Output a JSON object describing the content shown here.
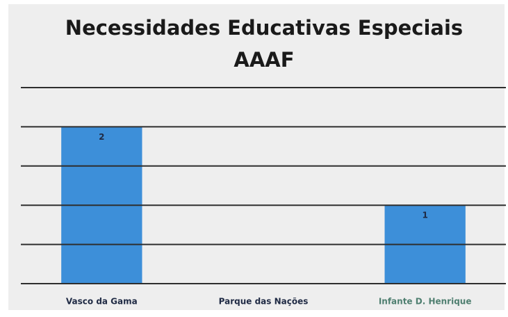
{
  "chart_data": {
    "type": "bar",
    "title": [
      "Necessidades Educativas Especiais",
      "AAAF"
    ],
    "categories": [
      "Vasco da Gama",
      "Parque das Nações",
      "Infante D. Henrique"
    ],
    "category_label_colors": [
      "#1f2a44",
      "#1f2a44",
      "#4f7f70"
    ],
    "values": [
      2,
      0,
      1
    ],
    "color": "#3d8fd9",
    "ylim": [
      0,
      2.5
    ],
    "yticks": [
      0,
      0.5,
      1,
      1.5,
      2,
      2.5
    ],
    "grid": true
  }
}
